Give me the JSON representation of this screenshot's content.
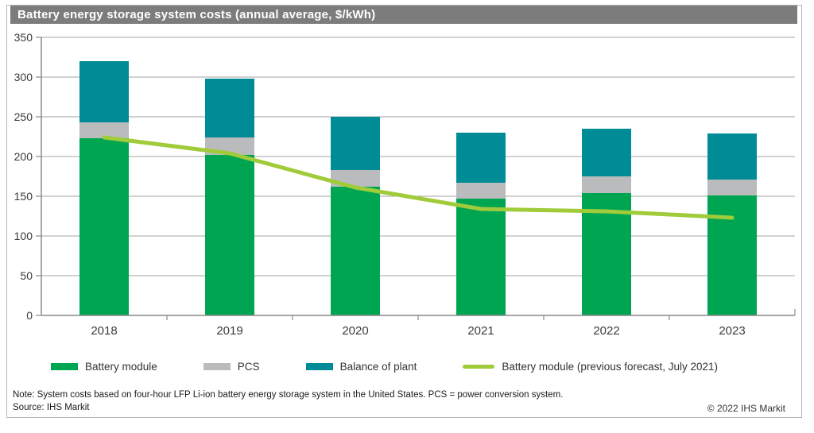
{
  "title": "Battery energy storage system costs (annual average, $/kWh)",
  "colors": {
    "title_bar_bg": "#7c7c7c",
    "title_text": "#ffffff",
    "battery_module": "#00a551",
    "pcs": "#b9bbbd",
    "balance_of_plant": "#008c96",
    "forecast_line": "#a0cb3a",
    "gridline": "#a3a3a3",
    "axis": "#8a8a8a",
    "frame_border": "#b6b6b6"
  },
  "chart_data": {
    "type": "bar",
    "stacked": true,
    "title": "Battery energy storage system costs (annual average, $/kWh)",
    "xlabel": "",
    "ylabel": "$/kWh",
    "ylim": [
      0,
      350
    ],
    "ytick_step": 50,
    "grid": true,
    "legend_position": "bottom",
    "categories": [
      "2018",
      "2019",
      "2020",
      "2021",
      "2022",
      "2023"
    ],
    "series": [
      {
        "name": "Battery module",
        "color": "#00a551",
        "values": [
          223,
          202,
          162,
          147,
          154,
          151
        ]
      },
      {
        "name": "PCS",
        "color": "#b9bbbd",
        "values": [
          20,
          22,
          21,
          20,
          21,
          20
        ]
      },
      {
        "name": "Balance of plant",
        "color": "#008c96",
        "values": [
          77,
          74,
          67,
          63,
          60,
          58
        ]
      }
    ],
    "stack_totals": [
      320,
      298,
      250,
      230,
      235,
      229
    ],
    "line_series": {
      "name": "Battery module (previous forecast, July 2021)",
      "color": "#a0cb3a",
      "values": [
        224,
        204,
        161,
        134,
        131,
        123
      ]
    }
  },
  "legend": {
    "items": [
      {
        "label": "Battery module",
        "swatch": "bar",
        "color": "#00a551"
      },
      {
        "label": "PCS",
        "swatch": "bar",
        "color": "#b9bbbd"
      },
      {
        "label": "Balance of plant",
        "swatch": "bar",
        "color": "#008c96"
      },
      {
        "label": "Battery module (previous forecast, July 2021)",
        "swatch": "line",
        "color": "#a0cb3a"
      }
    ]
  },
  "footer": {
    "note": "Note: System costs based on four-hour LFP Li-ion battery energy storage system in the United States. PCS = power conversion system.",
    "source": "Source: IHS Markit",
    "copyright": "© 2022 IHS Markit"
  }
}
